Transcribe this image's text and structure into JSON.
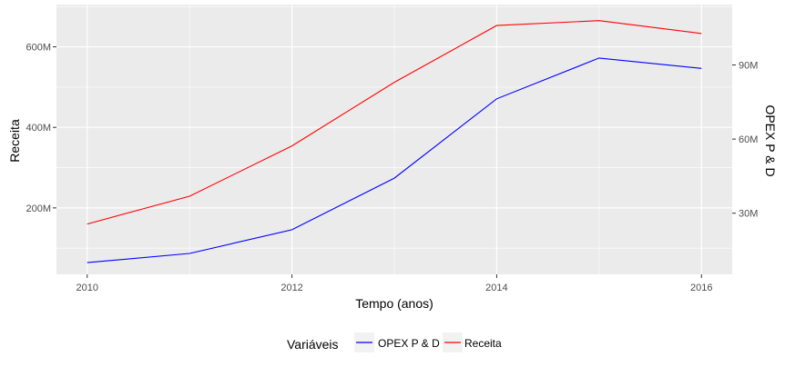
{
  "chart_data": {
    "type": "line",
    "xlabel": "Tempo (anos)",
    "ylabel": "Receita",
    "ylabel_right": "OPEX P & D",
    "x": [
      2010,
      2011,
      2012,
      2013,
      2014,
      2015,
      2016
    ],
    "xlim": [
      2009.7,
      2016.3
    ],
    "x_ticks": [
      2010,
      2012,
      2014,
      2016
    ],
    "x_tick_labels": [
      "2010",
      "2012",
      "2014",
      "2016"
    ],
    "ylim": [
      35,
      705
    ],
    "y_ticks": [
      200,
      400,
      600
    ],
    "y_tick_labels": [
      "200M",
      "400M",
      "600M"
    ],
    "y2lim": [
      5.25,
      114.47
    ],
    "y2_ticks": [
      30,
      60,
      90
    ],
    "y2_tick_labels": [
      "30M",
      "60M",
      "90M"
    ],
    "series": [
      {
        "name": "OPEX P & D",
        "axis": "right",
        "color": "#0000ff",
        "values": [
          10.0,
          13.7,
          23.3,
          44.2,
          76.3,
          92.8,
          88.6
        ]
      },
      {
        "name": "Receita",
        "axis": "left",
        "color": "#ff0000",
        "values": [
          160,
          229,
          354,
          512,
          653,
          665,
          633
        ]
      }
    ],
    "legend": {
      "title": "Variáveis",
      "position": "bottom"
    },
    "grid": true,
    "panel_background": "#ebebeb",
    "grid_color": "#ffffff"
  }
}
